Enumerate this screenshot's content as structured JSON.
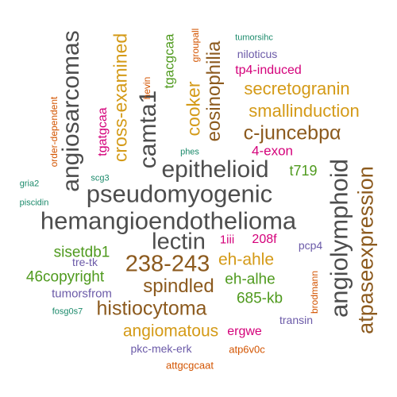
{
  "colors": {
    "gray": "#4d4d4d",
    "brown": "#8c5a1e",
    "gold": "#d49a17",
    "green": "#4f9a1e",
    "teal": "#1b8a6b",
    "purple": "#6b5aa8",
    "magenta": "#d4007a",
    "orange": "#d35400"
  },
  "words": [
    {
      "text": "hemangioendothelioma",
      "color": "#4d4d4d"
    },
    {
      "text": "pseudomyogenic",
      "color": "#4d4d4d"
    },
    {
      "text": "epithelioid",
      "color": "#4d4d4d"
    },
    {
      "text": "angiolymphoid",
      "color": "#4d4d4d"
    },
    {
      "text": "angiosarcomas",
      "color": "#4d4d4d"
    },
    {
      "text": "camta1",
      "color": "#4d4d4d"
    },
    {
      "text": "lectin",
      "color": "#4d4d4d"
    },
    {
      "text": "atpaseexpression",
      "color": "#8c5a1e"
    },
    {
      "text": "eosinophilia",
      "color": "#8c5a1e"
    },
    {
      "text": "238-243",
      "color": "#8c5a1e"
    },
    {
      "text": "c-juncebpα",
      "color": "#8c5a1e"
    },
    {
      "text": "histiocytoma",
      "color": "#8c5a1e"
    },
    {
      "text": "spindled",
      "color": "#8c5a1e"
    },
    {
      "text": "secretogranin",
      "color": "#d49a17"
    },
    {
      "text": "smallinduction",
      "color": "#d49a17"
    },
    {
      "text": "cross-examined",
      "color": "#d49a17"
    },
    {
      "text": "cooker",
      "color": "#d49a17"
    },
    {
      "text": "eh-ahle",
      "color": "#d49a17"
    },
    {
      "text": "angiomatous",
      "color": "#d49a17"
    },
    {
      "text": "sisetdb1",
      "color": "#4f9a1e"
    },
    {
      "text": "46copyright",
      "color": "#4f9a1e"
    },
    {
      "text": "eh-alhe",
      "color": "#4f9a1e"
    },
    {
      "text": "685-kb",
      "color": "#4f9a1e"
    },
    {
      "text": "t719",
      "color": "#4f9a1e"
    },
    {
      "text": "tgacgcaa",
      "color": "#4f9a1e"
    },
    {
      "text": "4-exon",
      "color": "#d4007a"
    },
    {
      "text": "tp4-induced",
      "color": "#d4007a"
    },
    {
      "text": "208f",
      "color": "#d4007a"
    },
    {
      "text": "1iii",
      "color": "#d4007a"
    },
    {
      "text": "ergwe",
      "color": "#d4007a"
    },
    {
      "text": "tgatgcaa",
      "color": "#d4007a"
    },
    {
      "text": "tumorsfrom",
      "color": "#6b5aa8"
    },
    {
      "text": "pkc-mek-erk",
      "color": "#6b5aa8"
    },
    {
      "text": "niloticus",
      "color": "#6b5aa8"
    },
    {
      "text": "tre-tk",
      "color": "#6b5aa8"
    },
    {
      "text": "pcp4",
      "color": "#6b5aa8"
    },
    {
      "text": "transin",
      "color": "#6b5aa8"
    },
    {
      "text": "tumorsihc",
      "color": "#1b8a6b"
    },
    {
      "text": "phes",
      "color": "#1b8a6b"
    },
    {
      "text": "scg3",
      "color": "#1b8a6b"
    },
    {
      "text": "gria2",
      "color": "#1b8a6b"
    },
    {
      "text": "piscidin",
      "color": "#1b8a6b"
    },
    {
      "text": "fosg0s7",
      "color": "#1b8a6b"
    },
    {
      "text": "order-dependent",
      "color": "#d35400"
    },
    {
      "text": "hevin",
      "color": "#d35400"
    },
    {
      "text": "groupall",
      "color": "#d35400"
    },
    {
      "text": "brodmann",
      "color": "#d35400"
    },
    {
      "text": "atp6v0c",
      "color": "#d35400"
    },
    {
      "text": "attgcgcaat",
      "color": "#d35400"
    }
  ]
}
